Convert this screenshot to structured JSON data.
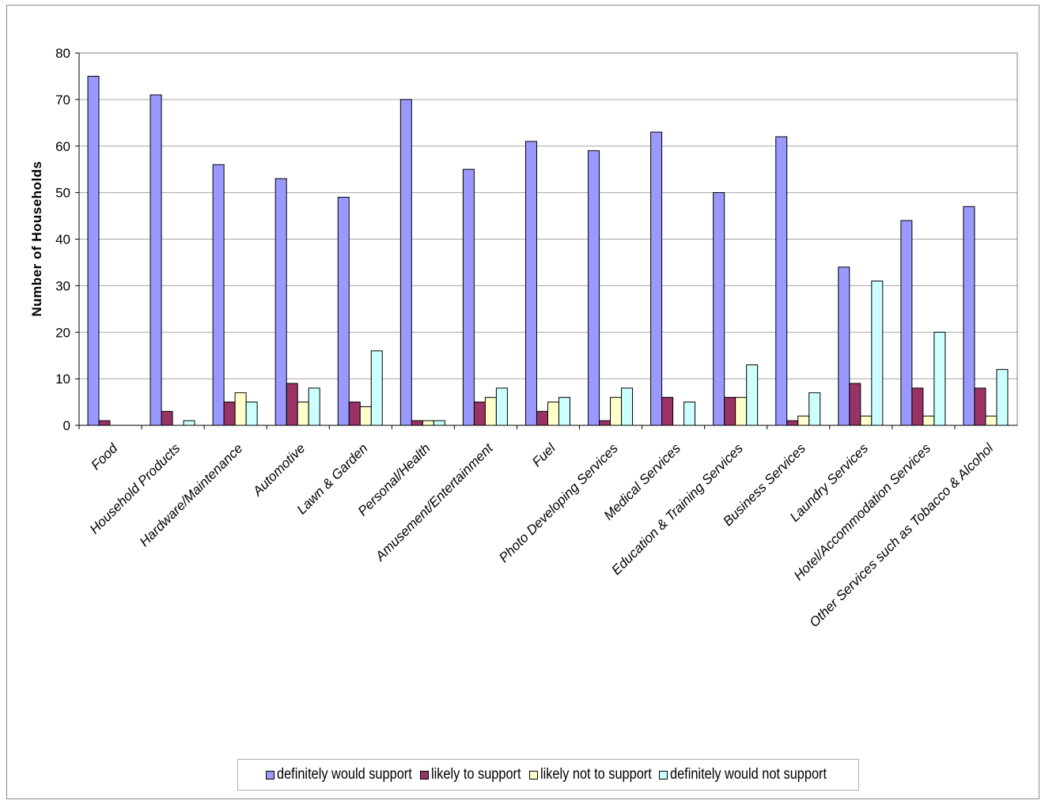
{
  "chart_data": {
    "type": "bar",
    "title": "",
    "xlabel": "",
    "ylabel": "Number of Households",
    "ylim": [
      0,
      80
    ],
    "yticks": [
      0,
      10,
      20,
      30,
      40,
      50,
      60,
      70,
      80
    ],
    "grid": true,
    "legend_position": "bottom",
    "categories": [
      "Food",
      "Household Products",
      "Hardware/Maintenance",
      "Automotive",
      "Lawn & Garden",
      "Personal/Health",
      "Amusement/Entertainment",
      "Fuel",
      "Photo Developing Services",
      "Medical Services",
      "Education & Training Services",
      "Business Services",
      "Laundry Services",
      "Hotel/Accommodation Services",
      "Other Services such as Tobacco & Alcohol"
    ],
    "series": [
      {
        "name": "definitely would support",
        "color": "#9999ff",
        "values": [
          75,
          71,
          56,
          53,
          49,
          70,
          55,
          61,
          59,
          63,
          50,
          62,
          34,
          44,
          47
        ]
      },
      {
        "name": "likely to support",
        "color": "#993366",
        "values": [
          1,
          3,
          5,
          9,
          5,
          1,
          5,
          3,
          1,
          6,
          6,
          1,
          9,
          8,
          8
        ]
      },
      {
        "name": "likely not to support",
        "color": "#ffffcc",
        "values": [
          0,
          0,
          7,
          5,
          4,
          1,
          6,
          5,
          6,
          0,
          6,
          2,
          2,
          2,
          2
        ]
      },
      {
        "name": "definitely would not support",
        "color": "#ccffff",
        "values": [
          0,
          1,
          5,
          8,
          16,
          1,
          8,
          6,
          8,
          5,
          13,
          7,
          31,
          20,
          12
        ]
      }
    ]
  }
}
